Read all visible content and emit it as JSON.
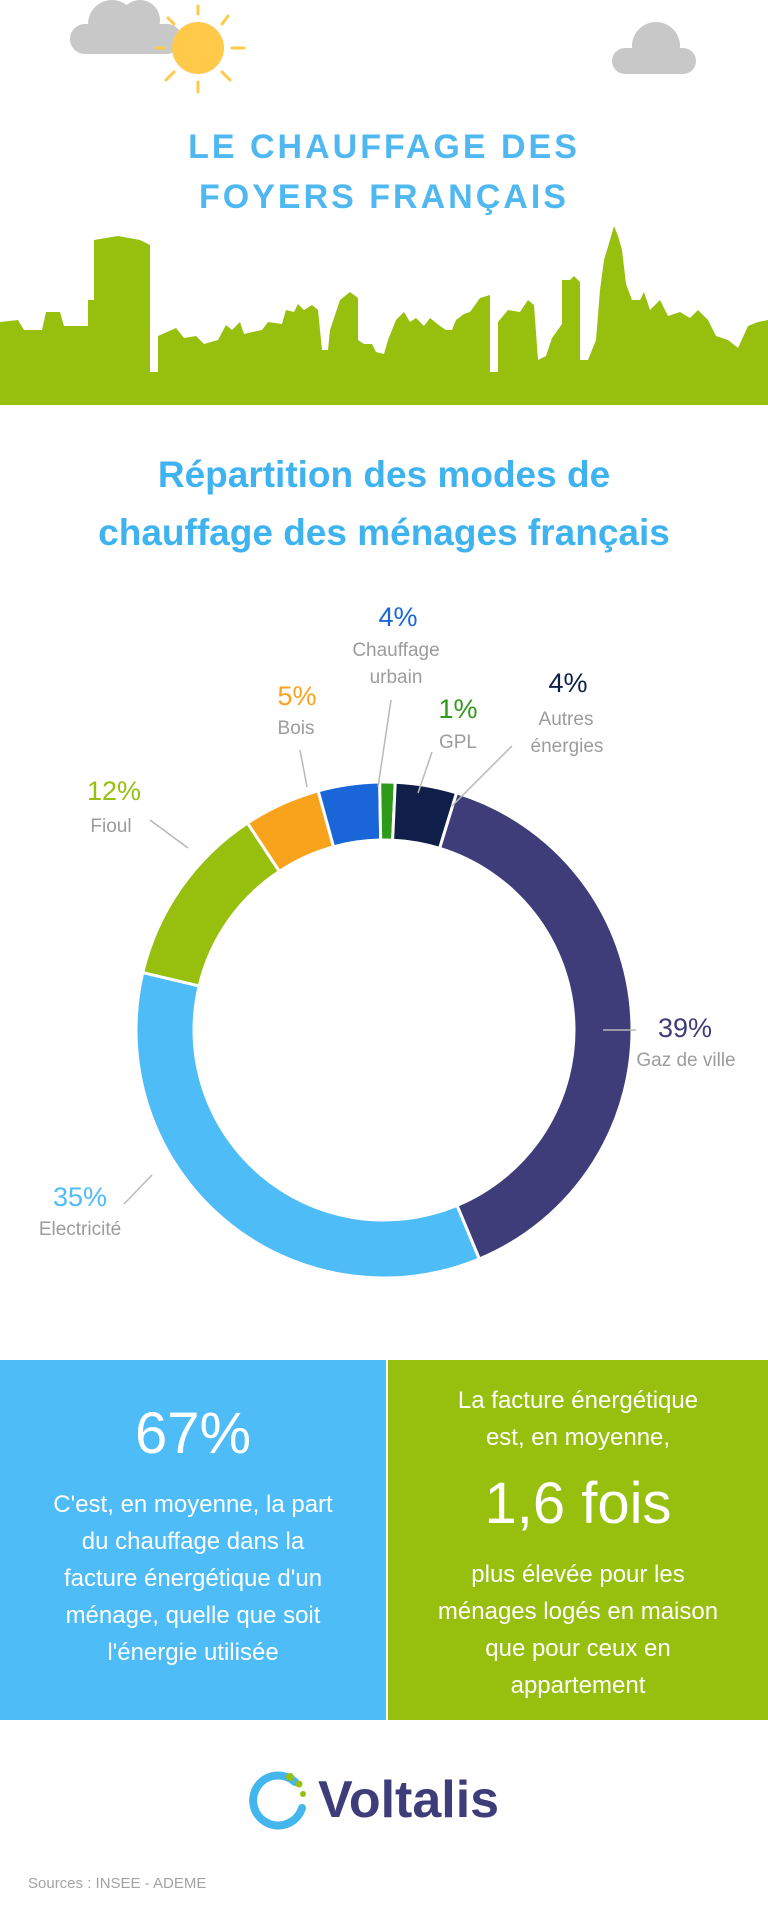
{
  "header": {
    "title_line1": "LE CHAUFFAGE DES",
    "title_line2": "FOYERS FRANÇAIS"
  },
  "colors": {
    "title_blue": "#4fb8f0",
    "green": "#96bf0e",
    "sky_blue": "#4ebcf6",
    "navy": "#3f3d79",
    "cloud": "#c8c8c8",
    "sun": "#ffc94a"
  },
  "chart_title": {
    "line1": "Répartition des modes de",
    "line2": "chauffage des ménages français"
  },
  "chart_data": {
    "type": "pie",
    "title": "Répartition des modes de chauffage des ménages français",
    "categories": [
      "Gaz de ville",
      "Electricité",
      "Fioul",
      "Bois",
      "Chauffage urbain",
      "GPL",
      "Autres énergies"
    ],
    "values": [
      39,
      35,
      12,
      5,
      4,
      1,
      4
    ],
    "labels": [
      "39%",
      "35%",
      "12%",
      "5%",
      "4%",
      "1%",
      "4%"
    ],
    "colors": [
      "#3f3d79",
      "#4ebcf6",
      "#96bf0e",
      "#f9a31c",
      "#1a66d9",
      "#2e9a1a",
      "#0f1f4a"
    ]
  },
  "labels": {
    "gaz_pct": "39%",
    "gaz_name": "Gaz de ville",
    "elec_pct": "35%",
    "elec_name": "Electricité",
    "fioul_pct": "12%",
    "fioul_name": "Fioul",
    "bois_pct": "5%",
    "bois_name": "Bois",
    "urbain_pct": "4%",
    "urbain_name1": "Chauffage",
    "urbain_name2": "urbain",
    "gpl_pct": "1%",
    "gpl_name": "GPL",
    "autres_pct": "4%",
    "autres_name1": "Autres",
    "autres_name2": "énergies"
  },
  "box_left": {
    "big": "67%",
    "lines": [
      "C'est, en moyenne, la part",
      "du chauffage dans la",
      "facture énergétique d'un",
      "ménage, quelle que soit",
      "l'énergie utilisée"
    ]
  },
  "box_right": {
    "intro": [
      "La facture énergétique",
      "est, en moyenne,"
    ],
    "big": "1,6 fois",
    "lines": [
      "plus élevée pour les",
      "ménages logés en maison",
      "que pour ceux en",
      "appartement"
    ]
  },
  "footer": {
    "logo_text": "Voltalis",
    "sources": "Sources : INSEE - ADEME"
  }
}
